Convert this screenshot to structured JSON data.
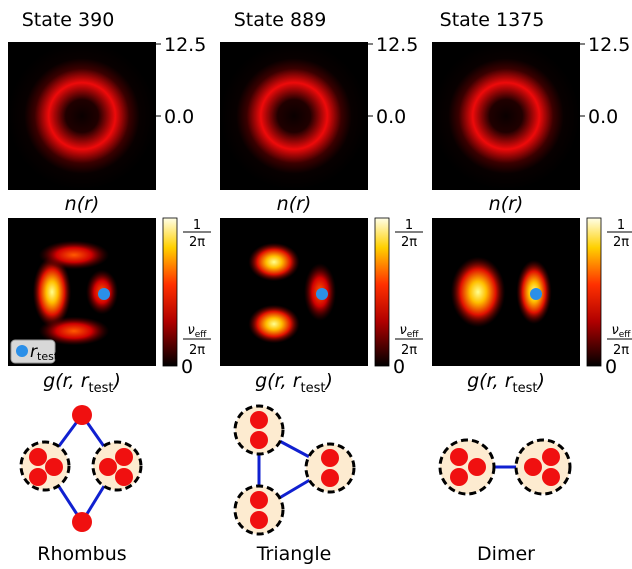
{
  "panels": [
    {
      "title": "State 390",
      "y_ticks": [
        "12.5",
        "0.0"
      ],
      "density_label": "n(r)",
      "correlation_label": {
        "main": "g(r, r",
        "sub": "test",
        "end": ")"
      },
      "colorbar": {
        "top_numerator": "1",
        "top_denominator": "2π",
        "mid_main": "ν",
        "mid_sub": "eff",
        "mid_denominator": "2π",
        "bottom": "0"
      },
      "shape": "Rhombus"
    },
    {
      "title": "State 889",
      "y_ticks": [
        "12.5",
        "0.0"
      ],
      "density_label": "n(r)",
      "correlation_label": {
        "main": "g(r, r",
        "sub": "test",
        "end": ")"
      },
      "colorbar": {
        "top_numerator": "1",
        "top_denominator": "2π",
        "mid_main": "ν",
        "mid_sub": "eff",
        "mid_denominator": "2π",
        "bottom": "0"
      },
      "shape": "Triangle"
    },
    {
      "title": "State 1375",
      "y_ticks": [
        "12.5",
        "0.0"
      ],
      "density_label": "n(r)",
      "correlation_label": {
        "main": "g(r, r",
        "sub": "test",
        "end": ")"
      },
      "colorbar": {
        "top_numerator": "1",
        "top_denominator": "2π",
        "mid_main": "ν",
        "mid_sub": "eff",
        "mid_denominator": "2π",
        "bottom": "0"
      },
      "shape": "Dimer"
    }
  ],
  "legend": {
    "main": "r",
    "sub": "test"
  }
}
